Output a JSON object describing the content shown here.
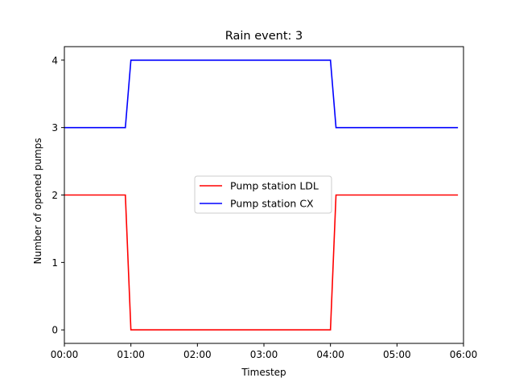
{
  "chart_data": {
    "type": "line",
    "title": "Rain event: 3",
    "xlabel": "Timestep",
    "ylabel": "Number of opened pumps",
    "x_ticks": [
      "00:00",
      "01:00",
      "02:00",
      "03:00",
      "04:00",
      "05:00",
      "06:00"
    ],
    "y_ticks": [
      "0",
      "1",
      "2",
      "3",
      "4"
    ],
    "xlim": [
      "00:00",
      "06:00"
    ],
    "ylim": [
      -0.2,
      4.2
    ],
    "grid": false,
    "legend_position": "center",
    "series": [
      {
        "name": "Pump station LDL",
        "color": "#ff0000",
        "points": [
          {
            "x": "00:00",
            "y": 2
          },
          {
            "x": "00:55",
            "y": 2
          },
          {
            "x": "01:00",
            "y": 0
          },
          {
            "x": "04:00",
            "y": 0
          },
          {
            "x": "04:05",
            "y": 2
          },
          {
            "x": "05:55",
            "y": 2
          }
        ]
      },
      {
        "name": "Pump station CX",
        "color": "#0000ff",
        "points": [
          {
            "x": "00:00",
            "y": 3
          },
          {
            "x": "00:55",
            "y": 3
          },
          {
            "x": "01:00",
            "y": 4
          },
          {
            "x": "04:00",
            "y": 4
          },
          {
            "x": "04:05",
            "y": 3
          },
          {
            "x": "05:55",
            "y": 3
          }
        ]
      }
    ]
  }
}
